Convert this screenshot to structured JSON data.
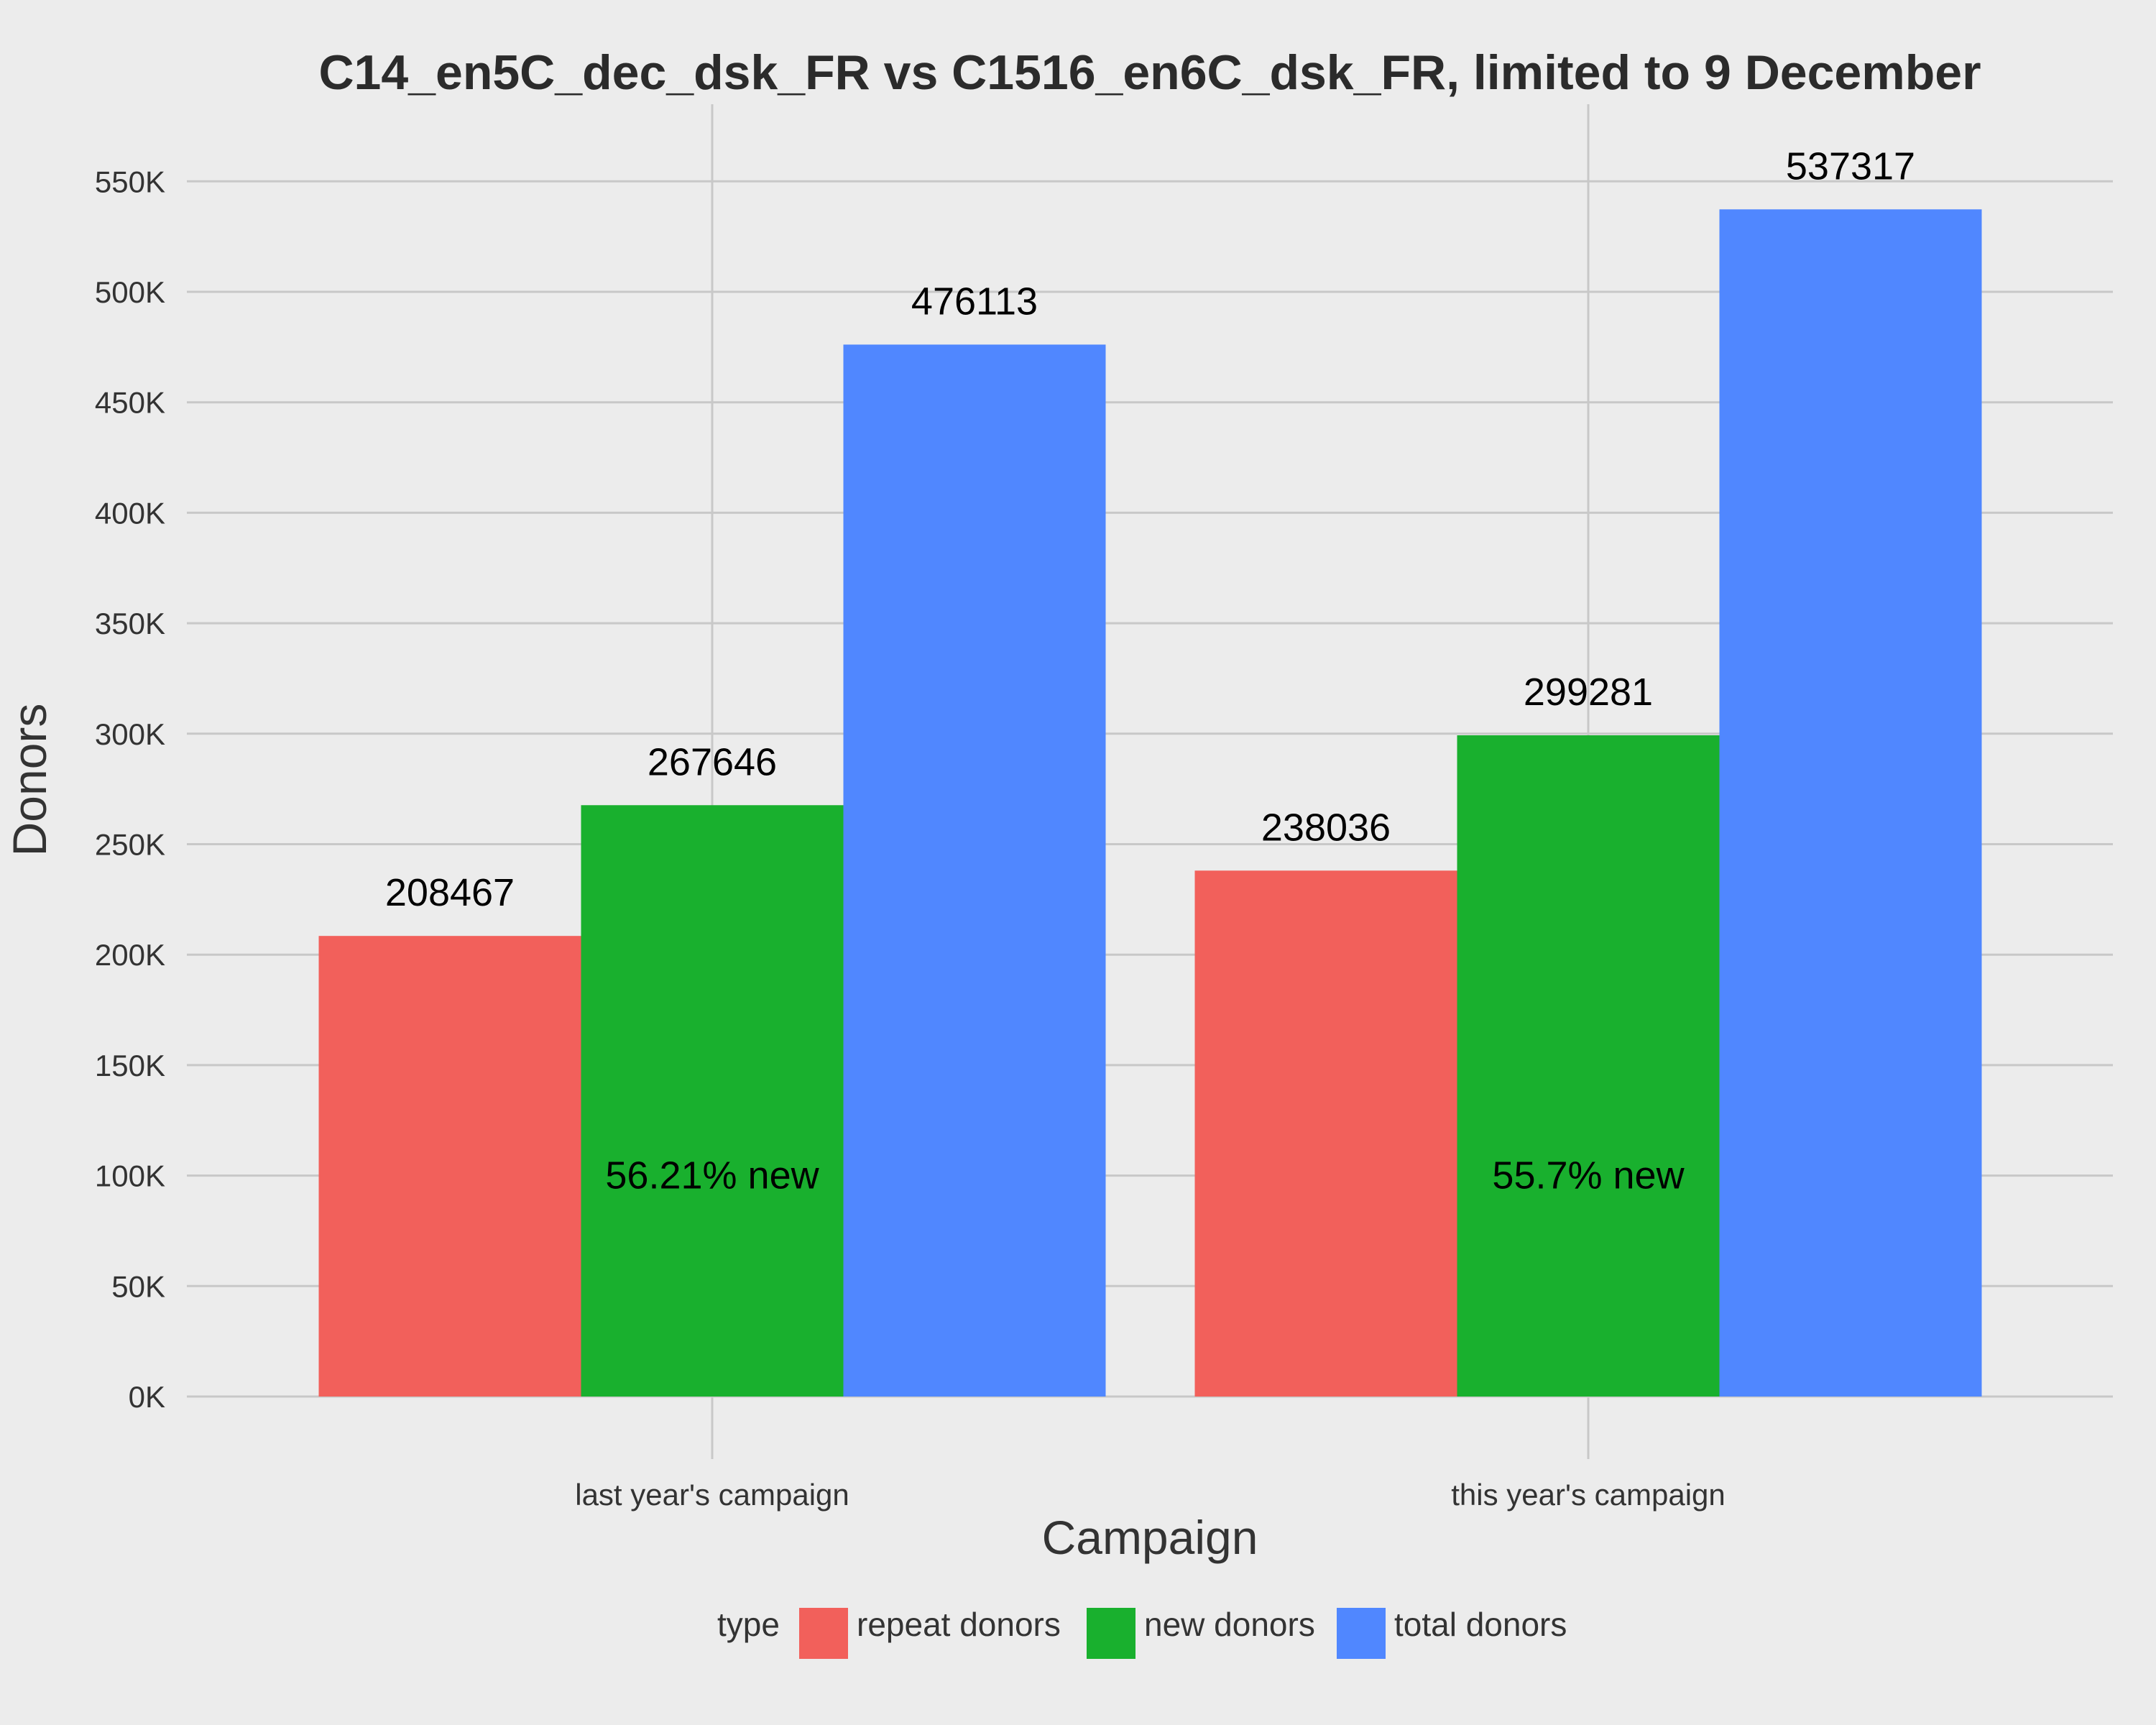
{
  "chart_data": {
    "type": "bar",
    "title": "C14_en5C_dec_dsk_FR vs C1516_en6C_dsk_FR, limited to 9 December",
    "xlabel": "Campaign",
    "ylabel": "Donors",
    "categories": [
      "last year's campaign",
      "this year's campaign"
    ],
    "series": [
      {
        "name": "repeat donors",
        "color": "#f2605b",
        "values": [
          208467,
          238036
        ]
      },
      {
        "name": "new donors",
        "color": "#19b02e",
        "values": [
          267646,
          299281
        ]
      },
      {
        "name": "total donors",
        "color": "#5087ff",
        "values": [
          476113,
          537317
        ]
      }
    ],
    "ylim": [
      0,
      575000
    ],
    "yticks": [
      0,
      50000,
      100000,
      150000,
      200000,
      250000,
      300000,
      350000,
      400000,
      450000,
      500000,
      550000
    ],
    "ytick_labels": [
      "0K",
      "50K",
      "100K",
      "150K",
      "200K",
      "250K",
      "300K",
      "350K",
      "400K",
      "450K",
      "500K",
      "550K"
    ],
    "annotations": [
      {
        "category": "last year's campaign",
        "text": "56.21% new",
        "y": 100000
      },
      {
        "category": "this year's campaign",
        "text": "55.7% new",
        "y": 100000
      }
    ],
    "legend": {
      "title": "type",
      "position": "bottom"
    },
    "grid": true
  }
}
